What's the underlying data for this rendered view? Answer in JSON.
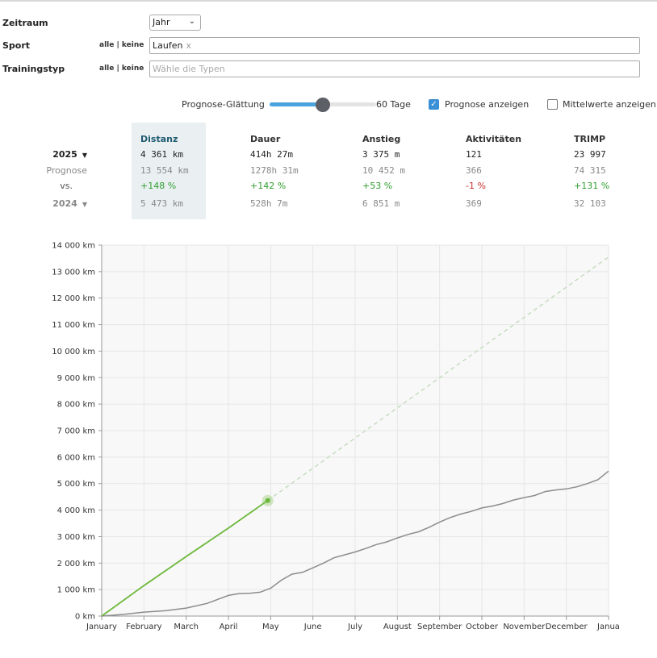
{
  "filters": {
    "zeitraum": {
      "label": "Zeitraum",
      "value": "Jahr"
    },
    "sport": {
      "label": "Sport",
      "alle_keine": "alle | keine",
      "tag": "Laufen",
      "tag_remove": "x"
    },
    "trainingstyp": {
      "label": "Trainingstyp",
      "alle_keine": "alle | keine",
      "placeholder": "Wähle die Typen"
    }
  },
  "controls": {
    "smoothing_label": "Prognose-Glättung",
    "smoothing_value": "60 Tage",
    "smoothing_fraction": 0.5,
    "show_forecast_label": "Prognose anzeigen",
    "show_forecast_checked": true,
    "show_means_label": "Mittelwerte anzeigen",
    "show_means_checked": false
  },
  "stats": {
    "headers": [
      "Distanz",
      "Dauer",
      "Anstieg",
      "Aktivitäten",
      "TRIMP"
    ],
    "row_labels": {
      "current": "2025",
      "forecast": "Prognose",
      "vs": "vs.",
      "previous": "2024"
    },
    "current": [
      "4 361 km",
      "414h 27m",
      "3 375 m",
      "121",
      "23 997"
    ],
    "forecast": [
      "13 554 km",
      "1278h 31m",
      "10 452 m",
      "366",
      "74 315"
    ],
    "vs": [
      "+148 %",
      "+142 %",
      "+53 %",
      "-1 %",
      "+131 %"
    ],
    "previous": [
      "5 473 km",
      "528h 7m",
      "6 851 m",
      "369",
      "32 103"
    ]
  },
  "chart_data": {
    "type": "line",
    "x_ticks": [
      "January",
      "February",
      "March",
      "April",
      "May",
      "June",
      "July",
      "August",
      "September",
      "October",
      "November",
      "December",
      "Janua"
    ],
    "y_ticks": [
      "0 km",
      "1 000 km",
      "2 000 km",
      "3 000 km",
      "4 000 km",
      "5 000 km",
      "6 000 km",
      "7 000 km",
      "8 000 km",
      "9 000 km",
      "10 000 km",
      "11 000 km",
      "12 000 km",
      "13 000 km",
      "14 000 km"
    ],
    "ylim": [
      0,
      14000
    ],
    "xlim": [
      0,
      12
    ],
    "grid": true,
    "colors": {
      "current": "#6cb83a",
      "previous": "#8c8c8c",
      "forecast": "#c6dcc0"
    },
    "series": [
      {
        "x": [
          0,
          1,
          2,
          3,
          3.93
        ],
        "values": [
          0,
          1150,
          2250,
          3320,
          4361
        ]
      },
      {
        "x": [
          0,
          0.5,
          1,
          1.5,
          2,
          2.5,
          3,
          3.25,
          3.5,
          3.75,
          4,
          4.25,
          4.5,
          4.75,
          5,
          5.25,
          5.5,
          5.75,
          6,
          6.25,
          6.5,
          6.75,
          7,
          7.25,
          7.5,
          7.75,
          8,
          8.25,
          8.5,
          8.75,
          9,
          9.25,
          9.5,
          9.75,
          10,
          10.25,
          10.5,
          10.75,
          11,
          11.25,
          11.5,
          11.75,
          12
        ],
        "values": [
          0,
          60,
          150,
          200,
          300,
          480,
          780,
          850,
          860,
          900,
          1050,
          1350,
          1580,
          1650,
          1820,
          2000,
          2200,
          2310,
          2420,
          2550,
          2700,
          2800,
          2950,
          3080,
          3180,
          3350,
          3550,
          3720,
          3850,
          3950,
          4080,
          4150,
          4250,
          4380,
          4470,
          4550,
          4700,
          4760,
          4800,
          4880,
          5000,
          5150,
          5473
        ]
      },
      {
        "x": [
          3.93,
          12
        ],
        "values": [
          4361,
          13554
        ]
      }
    ],
    "current_point": {
      "x": 3.93,
      "y": 4361
    }
  }
}
